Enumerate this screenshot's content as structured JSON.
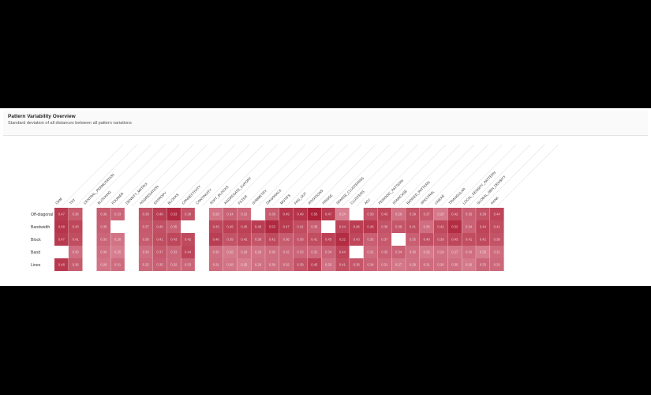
{
  "window": {
    "title": "Pattern Variability Overview",
    "subtitle": "Standard deviation of all distances between all pattern variations"
  },
  "colors": {
    "low": "#dc8c9c",
    "high": "#a8142c",
    "grid": "#e3e3e3"
  },
  "chart_data": {
    "type": "heatmap",
    "title": "Pattern Variability Overview",
    "subtitle": "Standard deviation of all distances between all pattern variations",
    "columns": [
      "OAM",
      "TNT",
      "CENTRAL_PERMUTATION",
      "BLOCKING",
      "FOURIER",
      "DENSITY_MATRIX",
      "AGGREGATION",
      "ENTROPY",
      "BLOCKS",
      "CONNECTIVITY",
      "CONTINUITY",
      "SOFT_BLOCKS",
      "AGGREGATE_EXPORT",
      "FILTER",
      "SYMMETRY",
      "DIAGONALS",
      "MOTIFS",
      "FAN_OUT",
      "ROTATIONS",
      "FRINGE",
      "SPARSE_CLUSTERING",
      "CLUSTERS",
      "ADJ",
      "PERIODIC_PATTERN",
      "STAIRCASE",
      "BANDED_PATTERN",
      "SPECTRAL",
      "LINEAR",
      "TRIANGULAR",
      "LOCAL_DENSITY_PATTERN",
      "GLOBAL_NBH_DENSITY",
      "RANK"
    ],
    "rows": [
      "Off-diagonal",
      "Bandwidth",
      "Block",
      "Band",
      "Lines"
    ],
    "values": [
      [
        0.47,
        0.36,
        null,
        0.36,
        0.33,
        null,
        0.39,
        0.46,
        0.53,
        0.39,
        null,
        0.28,
        0.34,
        0.32,
        null,
        0.36,
        0.49,
        0.49,
        0.56,
        0.47,
        0.24,
        null,
        0.39,
        0.43,
        0.29,
        0.39,
        0.37,
        0.26,
        0.42,
        0.35,
        0.39,
        0.44
      ],
      [
        0.49,
        0.43,
        null,
        0.35,
        null,
        null,
        0.37,
        0.4,
        0.35,
        null,
        null,
        0.43,
        0.45,
        0.45,
        0.46,
        0.53,
        0.47,
        0.41,
        0.35,
        null,
        0.44,
        0.46,
        0.48,
        0.39,
        0.38,
        0.41,
        0.3,
        0.42,
        0.52,
        0.34,
        0.44,
        0.41
      ],
      [
        0.47,
        0.41,
        null,
        0.33,
        0.28,
        null,
        0.36,
        0.41,
        0.43,
        0.42,
        null,
        0.46,
        0.39,
        0.42,
        0.38,
        0.42,
        0.36,
        0.38,
        0.41,
        0.45,
        0.52,
        0.43,
        0.35,
        0.37,
        null,
        0.35,
        0.4,
        0.39,
        0.43,
        0.41,
        0.42,
        0.39
      ],
      [
        null,
        0.3,
        null,
        0.3,
        0.25,
        null,
        0.3,
        0.37,
        0.33,
        0.44,
        null,
        0.3,
        0.26,
        0.29,
        0.28,
        0.3,
        0.32,
        0.33,
        0.32,
        0.34,
        0.44,
        null,
        0.31,
        0.35,
        0.34,
        0.3,
        0.26,
        0.29,
        0.27,
        0.3,
        0.25,
        0.31
      ],
      [
        0.48,
        0.36,
        null,
        0.28,
        0.31,
        null,
        0.32,
        0.35,
        0.32,
        0.33,
        null,
        0.31,
        0.28,
        0.25,
        0.29,
        0.3,
        0.32,
        0.39,
        0.45,
        0.29,
        0.41,
        0.38,
        0.34,
        0.31,
        0.27,
        0.29,
        0.31,
        0.3,
        0.3,
        0.26,
        0.33,
        0.32
      ]
    ],
    "value_range": [
      0.2,
      0.6
    ],
    "grid": false,
    "legend": "none"
  }
}
